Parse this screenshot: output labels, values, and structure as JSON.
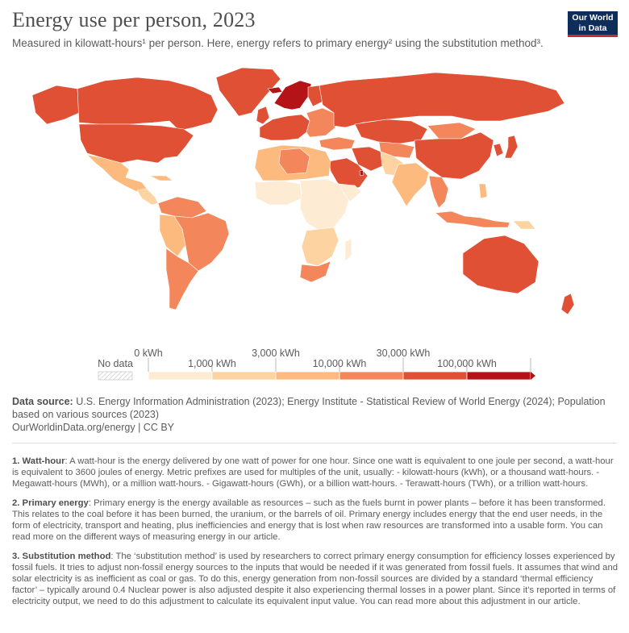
{
  "title": "Energy use per person, 2023",
  "subtitle": "Measured in kilowatt-hours¹ per person. Here, energy refers to primary energy² using the substitution method³.",
  "logo": {
    "line1": "Our World",
    "line2": "in Data",
    "bg": "#0f2d5a",
    "accent": "#c62a34"
  },
  "legend": {
    "no_data_label": "No data",
    "top_ticks": [
      "0 kWh",
      "3,000 kWh",
      "30,000 kWh"
    ],
    "bottom_ticks": [
      "1,000 kWh",
      "10,000 kWh",
      "100,000 kWh"
    ],
    "colors": [
      "#fdebd3",
      "#fcd3a1",
      "#fcba7f",
      "#f3865b",
      "#e05034",
      "#b41317"
    ]
  },
  "map_data": {
    "highest_band_regions": [
      "Iceland",
      "Norway",
      "Qatar"
    ],
    "very_high_band_regions": [
      "North America",
      "Russia",
      "Australia",
      "Saudi Arabia",
      "Western Europe"
    ],
    "low_band_regions": [
      "Central Africa",
      "East Africa"
    ]
  },
  "source": {
    "label": "Data source:",
    "text": "U.S. Energy Information Administration (2023); Energy Institute - Statistical Review of World Energy (2024); Population based on various sources (2023)",
    "url_line": "OurWorldinData.org/energy | CC BY"
  },
  "notes": [
    {
      "term": "1. Watt-hour",
      "text": ": A watt-hour is the energy delivered by one watt of power for one hour. Since one watt is equivalent to one joule per second, a watt-hour is equivalent to 3600 joules of energy. Metric prefixes are used for multiples of the unit, usually: - kilowatt-hours (kWh), or a thousand watt-hours. - Megawatt-hours (MWh), or a million watt-hours. - Gigawatt-hours (GWh), or a billion watt-hours. - Terawatt-hours (TWh), or a trillion watt-hours."
    },
    {
      "term": "2. Primary energy",
      "text": ": Primary energy is the energy available as resources – such as the fuels burnt in power plants – before it has been transformed. This relates to the coal before it has been burned, the uranium, or the barrels of oil. Primary energy includes energy that the end user needs, in the form of electricity, transport and heating, plus inefficiencies and energy that is lost when raw resources are transformed into a usable form. You can read more on the different ways of measuring energy in our article."
    },
    {
      "term": "3. Substitution method",
      "text": ": The ‘substitution method’ is used by researchers to correct primary energy consumption for efficiency losses experienced by fossil fuels. It tries to adjust non-fossil energy sources to the inputs that would be needed if it was generated from fossil fuels. It assumes that wind and solar electricity is as inefficient as coal or gas. To do this, energy generation from non-fossil sources are divided by a standard ‘thermal efficiency factor’ – typically around 0.4 Nuclear power is also adjusted despite it also experiencing thermal losses in a power plant. Since it’s reported in terms of electricity output, we need to do this adjustment to calculate its equivalent input value. You can read more about this adjustment in our article."
    }
  ]
}
